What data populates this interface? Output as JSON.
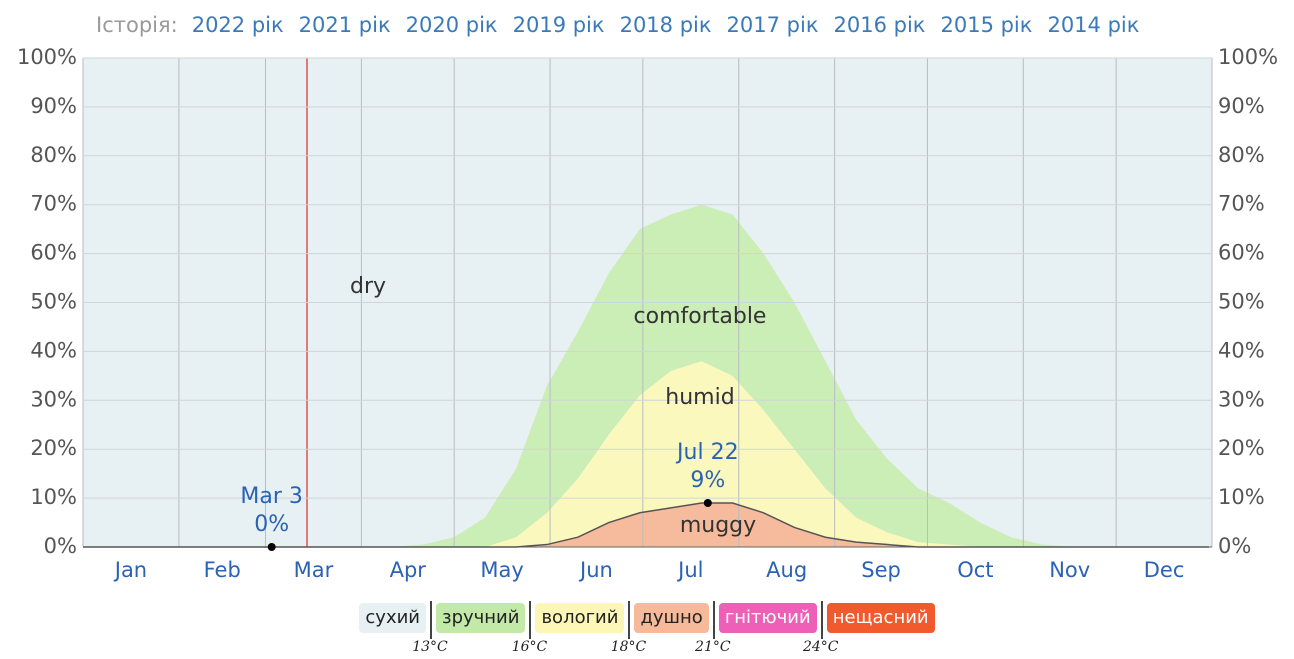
{
  "history": {
    "label": "Історія:",
    "years": [
      "2022 рік",
      "2021 рік",
      "2020 рік",
      "2019 рік",
      "2018 рік",
      "2017 рік",
      "2016 рік",
      "2015 рік",
      "2014 рік"
    ]
  },
  "chart_data": {
    "type": "area",
    "categories": [
      "Jan",
      "Feb",
      "Mar",
      "Apr",
      "May",
      "Jun",
      "Jul",
      "Aug",
      "Sep",
      "Oct",
      "Nov",
      "Dec"
    ],
    "month_starts": [
      1,
      32,
      60,
      91,
      121,
      152,
      182,
      213,
      244,
      274,
      305,
      335,
      366
    ],
    "xlim": [
      1,
      366
    ],
    "x": [
      1,
      11,
      21,
      31,
      41,
      51,
      61,
      71,
      81,
      91,
      101,
      111,
      121,
      131,
      141,
      151,
      161,
      171,
      181,
      191,
      201,
      211,
      221,
      231,
      241,
      251,
      261,
      271,
      281,
      291,
      301,
      311,
      321,
      331,
      341,
      351,
      361,
      365
    ],
    "series": [
      {
        "name": "muggy",
        "color": "#f6bb9c",
        "values": [
          0,
          0,
          0,
          0,
          0,
          0,
          0,
          0,
          0,
          0,
          0,
          0,
          0,
          0,
          0,
          0.5,
          2,
          5,
          7,
          8,
          9,
          9,
          7,
          4,
          2,
          1,
          0.5,
          0,
          0,
          0,
          0,
          0,
          0,
          0,
          0,
          0,
          0,
          0
        ]
      },
      {
        "name": "humid",
        "color": "#fbf8bd",
        "values": [
          0,
          0,
          0,
          0,
          0,
          0,
          0,
          0,
          0,
          0,
          0,
          0,
          0,
          0,
          2,
          6.5,
          12,
          18,
          24,
          28,
          29,
          26,
          21,
          16,
          10,
          5,
          2.5,
          1,
          0.5,
          0,
          0,
          0,
          0,
          0,
          0,
          0,
          0,
          0
        ]
      },
      {
        "name": "comfortable",
        "color": "#cbedb6",
        "values": [
          0,
          0,
          0,
          0,
          0,
          0,
          0,
          0,
          0,
          0,
          0,
          0.5,
          2,
          6,
          14,
          26,
          30,
          33,
          34,
          32,
          32,
          33,
          32,
          30,
          26,
          20,
          15,
          11,
          8.5,
          5,
          2,
          0.5,
          0,
          0,
          0,
          0,
          0,
          0
        ]
      }
    ],
    "background": {
      "name": "dry",
      "color": "#e7f0f2"
    },
    "ylim": [
      0,
      100
    ],
    "yticks": [
      {
        "value": 0,
        "label": "0%"
      },
      {
        "value": 10,
        "label": "10%"
      },
      {
        "value": 20,
        "label": "20%"
      },
      {
        "value": 30,
        "label": "30%"
      },
      {
        "value": 40,
        "label": "40%"
      },
      {
        "value": 50,
        "label": "50%"
      },
      {
        "value": 60,
        "label": "60%"
      },
      {
        "value": 70,
        "label": "70%"
      },
      {
        "value": 80,
        "label": "80%"
      },
      {
        "value": 90,
        "label": "90%"
      },
      {
        "value": 100,
        "label": "100%"
      }
    ],
    "grid": true,
    "annotations": [
      {
        "label": "Mar 3",
        "x": 62,
        "value": 0,
        "value_label": "0%"
      },
      {
        "label": "Jul 22",
        "x": 203,
        "value": 9,
        "value_label": "9%"
      }
    ],
    "legend": [
      {
        "label": "сухий",
        "color": "#e7f0f2"
      },
      {
        "label": "зручний",
        "color": "#c3e9a8"
      },
      {
        "label": "вологий",
        "color": "#fcf7b6"
      },
      {
        "label": "душно",
        "color": "#f6b99a"
      },
      {
        "label": "гнітючий",
        "color": "#ee5fb8"
      },
      {
        "label": "нещасний",
        "color": "#f05a2c"
      }
    ],
    "thresholds": [
      "13°C",
      "16°C",
      "18°C",
      "21°C",
      "24°C"
    ]
  }
}
